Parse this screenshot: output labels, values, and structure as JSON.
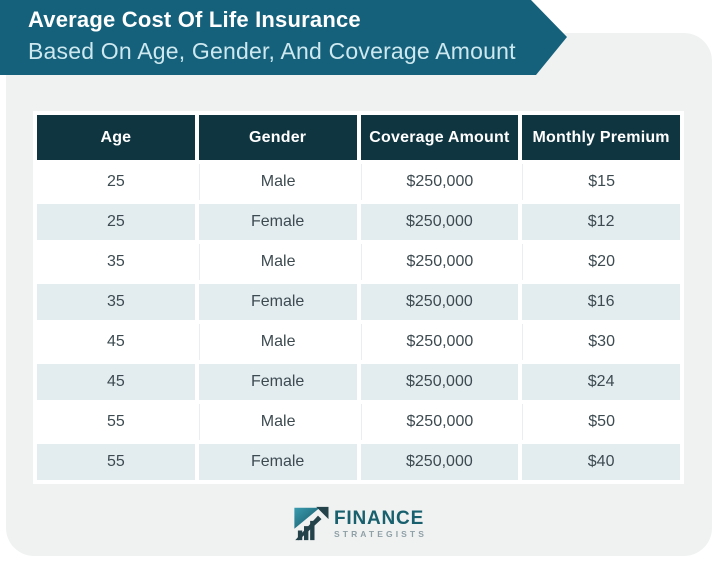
{
  "banner": {
    "title": "Average Cost Of Life Insurance",
    "subtitle": "Based On Age, Gender, And Coverage Amount"
  },
  "table": {
    "columns": [
      "Age",
      "Gender",
      "Coverage Amount",
      "Monthly Premium"
    ],
    "rows": [
      [
        "25",
        "Male",
        "$250,000",
        "$15"
      ],
      [
        "25",
        "Female",
        "$250,000",
        "$12"
      ],
      [
        "35",
        "Male",
        "$250,000",
        "$20"
      ],
      [
        "35",
        "Female",
        "$250,000",
        "$16"
      ],
      [
        "45",
        "Male",
        "$250,000",
        "$30"
      ],
      [
        "45",
        "Female",
        "$250,000",
        "$24"
      ],
      [
        "55",
        "Male",
        "$250,000",
        "$50"
      ],
      [
        "55",
        "Female",
        "$250,000",
        "$40"
      ]
    ]
  },
  "footer": {
    "brand_name": "FINANCE",
    "brand_subname": "STRATEGISTS",
    "logo_icon": "growth-chart-arrow-icon"
  },
  "colors": {
    "banner_teal": "#15617b",
    "header_dark": "#0f3541",
    "row_shade": "#e3edf0",
    "card_bg": "#f0f2f2",
    "cell_text": "#3d4b51",
    "subtitle_text": "#cde8ef",
    "brand_teal": "#19606e",
    "brand_gray": "#8fa0a6"
  },
  "chart_data": {
    "type": "table",
    "title": "Average Cost Of Life Insurance Based On Age, Gender, And Coverage Amount",
    "columns": [
      "Age",
      "Gender",
      "Coverage Amount",
      "Monthly Premium"
    ],
    "rows": [
      {
        "age": 25,
        "gender": "Male",
        "coverage_amount": "$250,000",
        "monthly_premium": "$15"
      },
      {
        "age": 25,
        "gender": "Female",
        "coverage_amount": "$250,000",
        "monthly_premium": "$12"
      },
      {
        "age": 35,
        "gender": "Male",
        "coverage_amount": "$250,000",
        "monthly_premium": "$20"
      },
      {
        "age": 35,
        "gender": "Female",
        "coverage_amount": "$250,000",
        "monthly_premium": "$16"
      },
      {
        "age": 45,
        "gender": "Male",
        "coverage_amount": "$250,000",
        "monthly_premium": "$30"
      },
      {
        "age": 45,
        "gender": "Female",
        "coverage_amount": "$250,000",
        "monthly_premium": "$24"
      },
      {
        "age": 55,
        "gender": "Male",
        "coverage_amount": "$250,000",
        "monthly_premium": "$50"
      },
      {
        "age": 55,
        "gender": "Female",
        "coverage_amount": "$250,000",
        "monthly_premium": "$40"
      }
    ]
  }
}
